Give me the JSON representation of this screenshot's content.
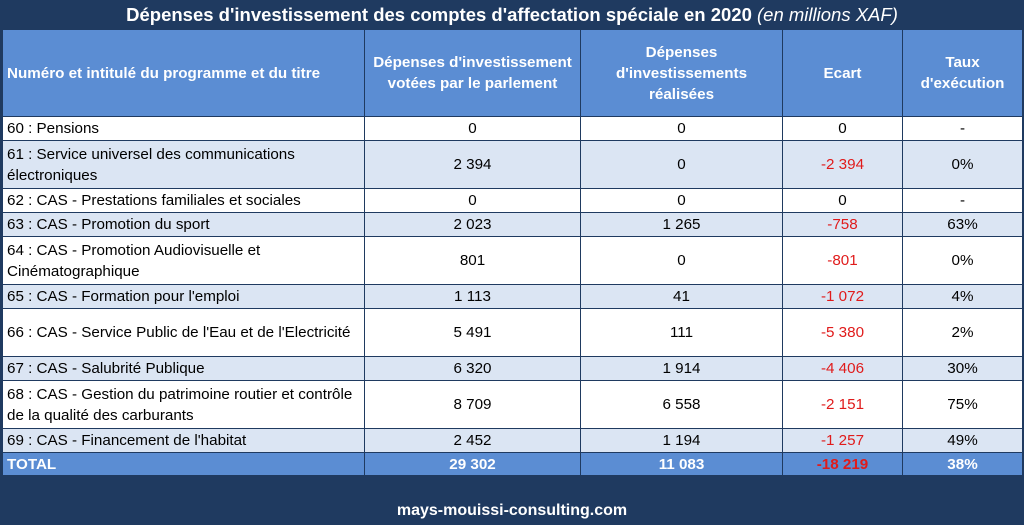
{
  "title": {
    "main": "Dépenses d'investissement des comptes d'affectation spéciale en 2020",
    "unit": "(en millions XAF)"
  },
  "headers": {
    "program": "Numéro et intitulé du programme et du titre",
    "voted": "Dépenses d'investissement votées par le parlement",
    "realized": "Dépenses d'investissements réalisées",
    "gap": "Ecart",
    "rate": "Taux d'exécution"
  },
  "rows": [
    {
      "label": "60 : Pensions",
      "voted": "0",
      "realized": "0",
      "gap": "0",
      "rate": "-"
    },
    {
      "label": "61 : Service universel des communications électroniques",
      "voted": "2 394",
      "realized": "0",
      "gap": "-2 394",
      "rate": "0%"
    },
    {
      "label": "62 : CAS - Prestations familiales et sociales",
      "voted": "0",
      "realized": "0",
      "gap": "0",
      "rate": "-"
    },
    {
      "label": "63 : CAS - Promotion du sport",
      "voted": "2 023",
      "realized": "1 265",
      "gap": "-758",
      "rate": "63%"
    },
    {
      "label": "64 : CAS - Promotion Audiovisuelle et Cinématographique",
      "voted": "801",
      "realized": "0",
      "gap": "-801",
      "rate": "0%"
    },
    {
      "label": "65 : CAS - Formation pour l'emploi",
      "voted": "1 113",
      "realized": "41",
      "gap": "-1 072",
      "rate": "4%"
    },
    {
      "label": "66 : CAS - Service Public de l'Eau et de l'Electricité",
      "voted": "5 491",
      "realized": "111",
      "gap": "-5 380",
      "rate": "2%"
    },
    {
      "label": "67 : CAS - Salubrité Publique",
      "voted": "6 320",
      "realized": "1 914",
      "gap": "-4 406",
      "rate": "30%"
    },
    {
      "label": "68 : CAS - Gestion du patrimoine routier et contrôle de la qualité des carburants",
      "voted": "8 709",
      "realized": "6 558",
      "gap": "-2 151",
      "rate": "75%"
    },
    {
      "label": "69 : CAS - Financement de l'habitat",
      "voted": "2 452",
      "realized": "1 194",
      "gap": "-1 257",
      "rate": "49%"
    }
  ],
  "total": {
    "label": "TOTAL",
    "voted": "29 302",
    "realized": "11 083",
    "gap": "-18 219",
    "rate": "38%"
  },
  "footer": "mays-mouissi-consulting.com",
  "colors": {
    "frame": "#1f3a60",
    "header_bg": "#5b8dd3",
    "alt_row": "#dbe5f3",
    "negative": "#e01b1b"
  }
}
